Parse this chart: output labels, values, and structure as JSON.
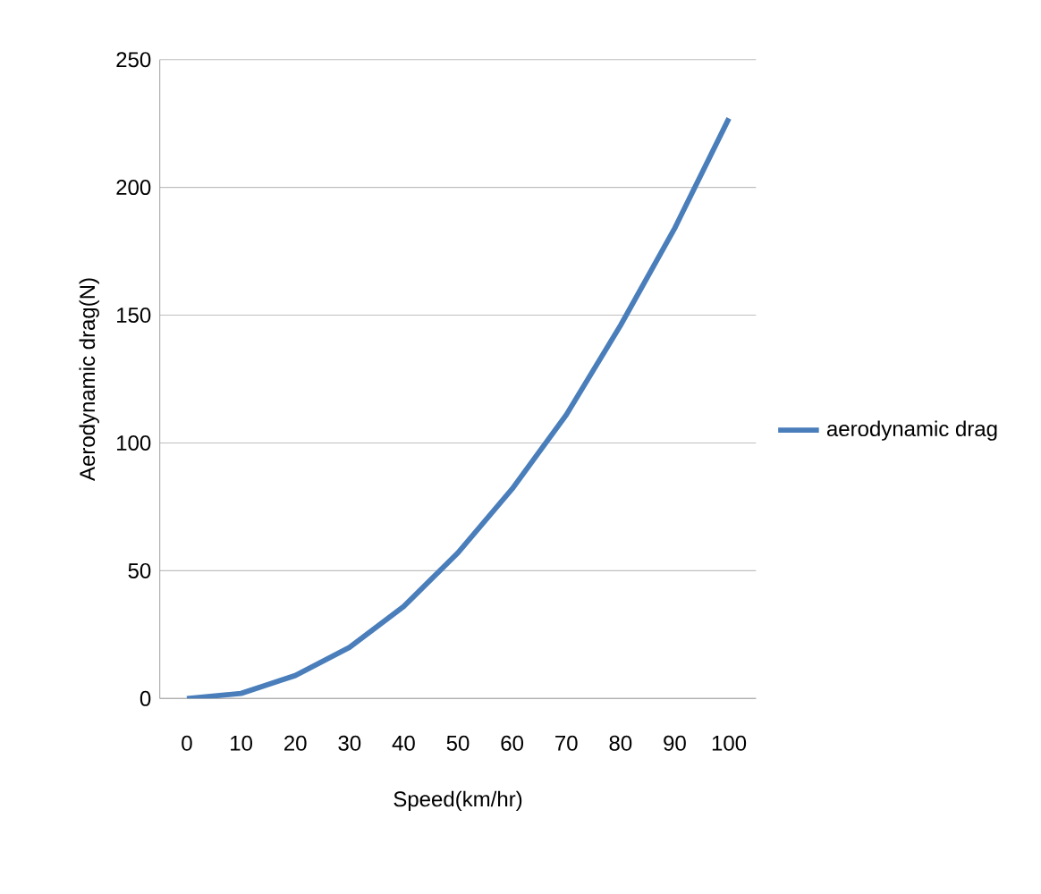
{
  "chart_data": {
    "type": "line",
    "xlabel": "Speed(km/hr)",
    "ylabel": "Aerodynamic drag(N)",
    "categories": [
      "0",
      "10",
      "20",
      "30",
      "40",
      "50",
      "60",
      "70",
      "80",
      "90",
      "100"
    ],
    "series": [
      {
        "name": "aerodynamic drag",
        "color": "#4a7ebb",
        "values": [
          0,
          2,
          9,
          20,
          36,
          57,
          82,
          111,
          146,
          184,
          227
        ]
      }
    ],
    "ylim": [
      0,
      250
    ],
    "yticks": [
      0,
      50,
      100,
      150,
      200,
      250
    ],
    "grid": "y",
    "legend": "right",
    "marker": "none",
    "line_style": "solid"
  }
}
